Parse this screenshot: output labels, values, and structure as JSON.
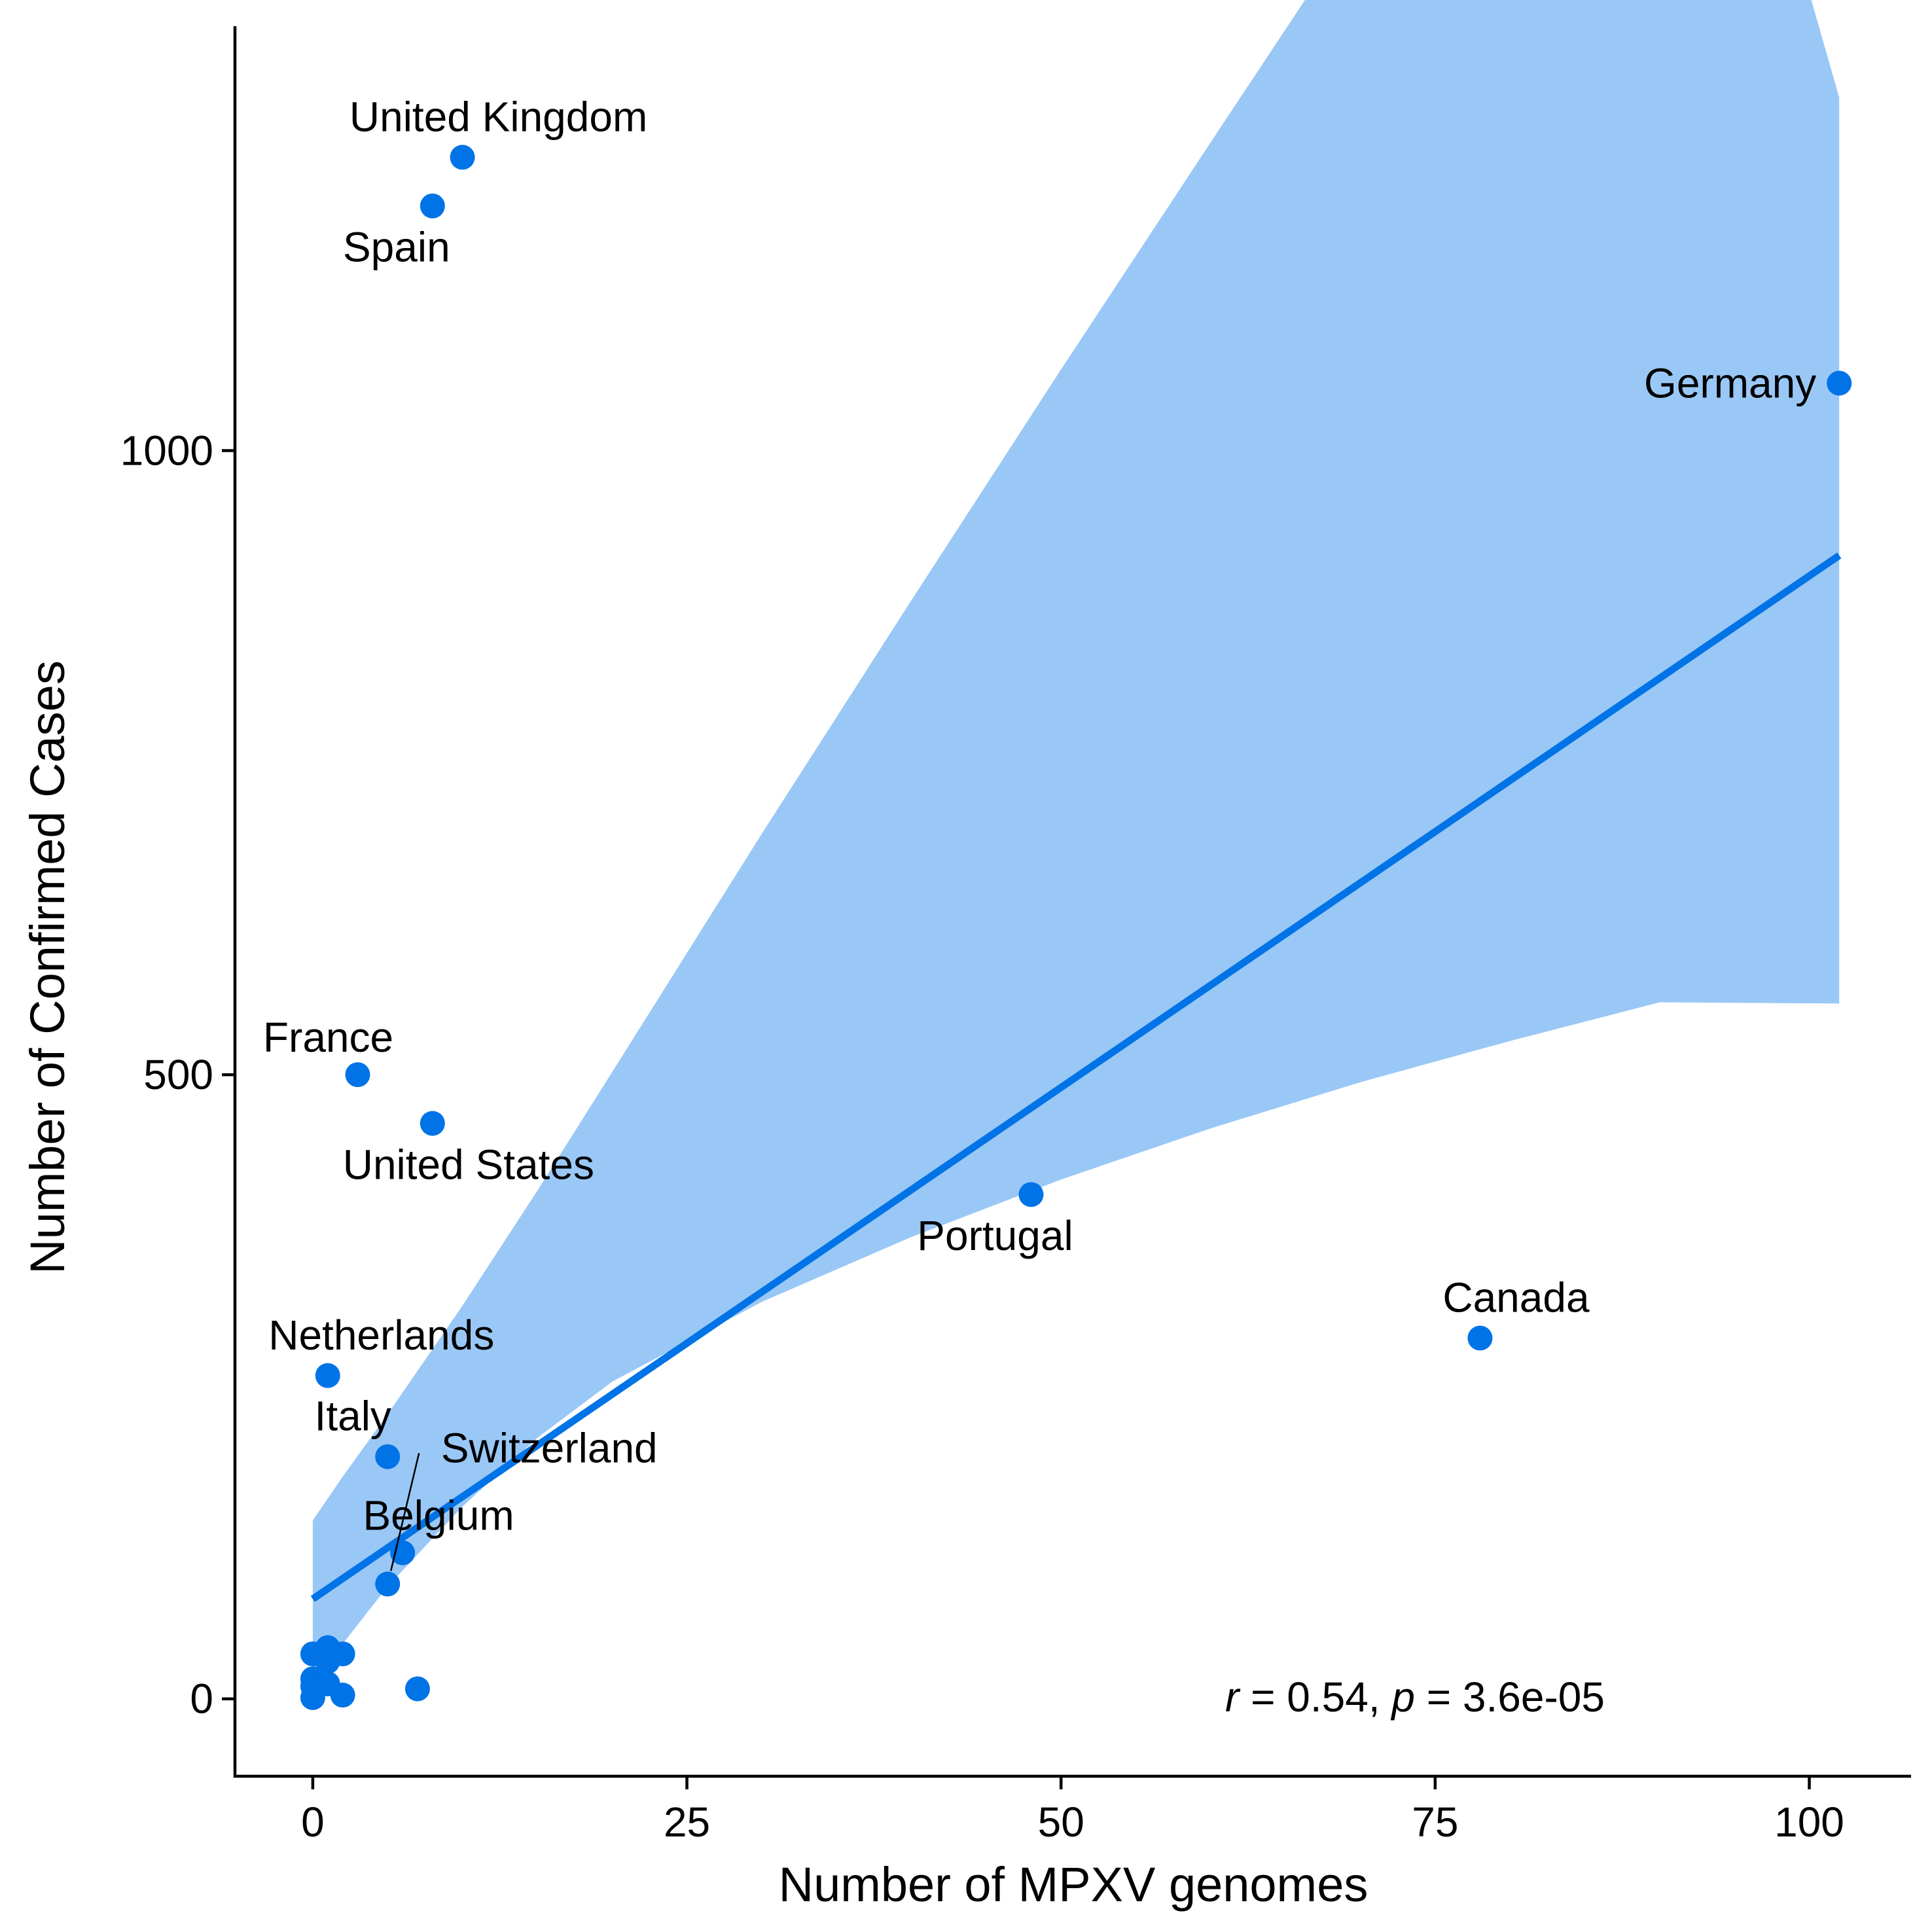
{
  "chart_data": {
    "type": "scatter",
    "title": "",
    "xlabel": "Number of MPXV genomes",
    "ylabel": "Number of Confirmed Cases",
    "xlim": [
      -5.2,
      106.8
    ],
    "ylim": [
      -62,
      1340
    ],
    "x_ticks": [
      0,
      25,
      50,
      75,
      100
    ],
    "y_ticks": [
      0,
      500,
      1000
    ],
    "grid": false,
    "point_color": "#0073E6",
    "band_color": "#9AC8F6",
    "points": [
      {
        "label": "United Kingdom",
        "x": 10,
        "y": 1235
      },
      {
        "label": "Spain",
        "x": 8,
        "y": 1196
      },
      {
        "label": "Germany",
        "x": 102,
        "y": 1054
      },
      {
        "label": "France",
        "x": 3,
        "y": 500
      },
      {
        "label": "United States",
        "x": 8,
        "y": 461
      },
      {
        "label": "Portugal",
        "x": 48,
        "y": 404
      },
      {
        "label": "Canada",
        "x": 78,
        "y": 289
      },
      {
        "label": "Netherlands",
        "x": 1,
        "y": 259
      },
      {
        "label": "Italy",
        "x": 5,
        "y": 194
      },
      {
        "label": "Switzerland",
        "x": 5,
        "y": 92
      },
      {
        "label": "Belgium",
        "x": 6,
        "y": 117
      },
      {
        "label": "",
        "x": 7,
        "y": 8
      },
      {
        "label": "",
        "x": 0,
        "y": 36
      },
      {
        "label": "",
        "x": 1,
        "y": 41
      },
      {
        "label": "",
        "x": 2,
        "y": 36
      },
      {
        "label": "",
        "x": 1,
        "y": 30
      },
      {
        "label": "",
        "x": 0,
        "y": 16
      },
      {
        "label": "",
        "x": 0,
        "y": 10
      },
      {
        "label": "",
        "x": 1,
        "y": 12
      },
      {
        "label": "",
        "x": 2,
        "y": 3
      },
      {
        "label": "",
        "x": 0,
        "y": 1
      }
    ],
    "fit": {
      "x": [
        0,
        102
      ],
      "y": [
        80,
        916
      ]
    },
    "confidence_band": {
      "x": [
        0,
        2,
        5,
        10,
        15,
        20,
        30,
        40,
        50,
        60,
        70,
        80,
        90,
        102
      ],
      "upper": [
        143,
        178,
        228,
        315,
        407,
        502,
        693,
        880,
        1065,
        1247,
        1428,
        1606,
        1785,
        1283
      ],
      "lower": [
        18,
        44,
        90,
        154,
        209,
        254,
        318,
        370,
        416,
        457,
        494,
        527,
        558,
        557
      ]
    },
    "annotation": {
      "r_label": "r",
      "r_value": " = 0.54, ",
      "p_label": "p",
      "p_value": " = 3.6e-05"
    }
  }
}
